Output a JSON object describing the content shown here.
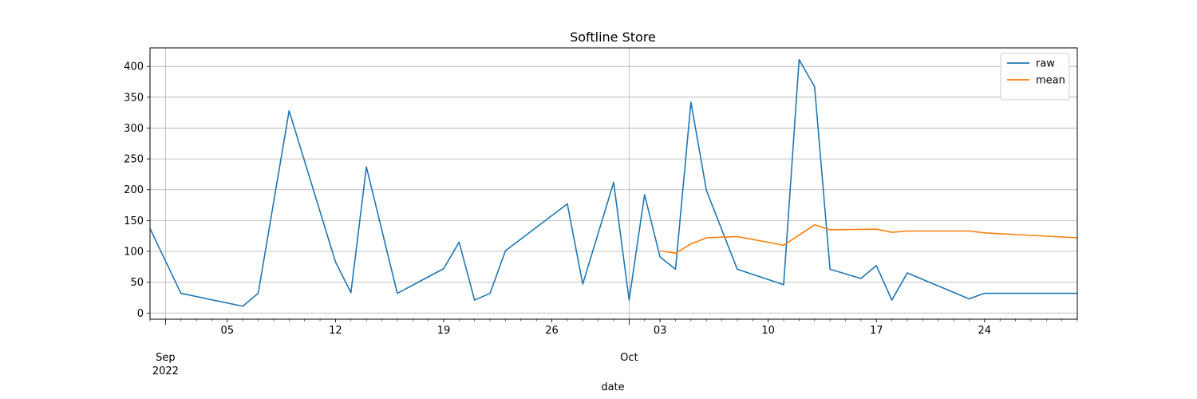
{
  "chart_data": {
    "type": "line",
    "title": "Softline Store",
    "xlabel": "date",
    "ylabel": "",
    "ylim": [
      -10,
      430
    ],
    "xlim": [
      "2022-08-31",
      "2022-10-30"
    ],
    "grid": true,
    "legend_position": "top-right",
    "y_ticks": [
      0,
      50,
      100,
      150,
      200,
      250,
      300,
      350,
      400
    ],
    "x_major_ticks": [
      {
        "date": "2022-09-05",
        "label": "05"
      },
      {
        "date": "2022-09-12",
        "label": "12"
      },
      {
        "date": "2022-09-19",
        "label": "19"
      },
      {
        "date": "2022-09-26",
        "label": "26"
      },
      {
        "date": "2022-10-03",
        "label": "03"
      },
      {
        "date": "2022-10-10",
        "label": "10"
      },
      {
        "date": "2022-10-17",
        "label": "17"
      },
      {
        "date": "2022-10-24",
        "label": "24"
      }
    ],
    "x_month_ticks": [
      {
        "date": "2022-09-01",
        "label": "Sep",
        "year_label": "2022"
      },
      {
        "date": "2022-10-01",
        "label": "Oct",
        "year_label": ""
      }
    ],
    "series": [
      {
        "name": "raw",
        "color": "#1f77b4",
        "points": [
          [
            "2022-08-31",
            137
          ],
          [
            "2022-09-02",
            32
          ],
          [
            "2022-09-06",
            11
          ],
          [
            "2022-09-07",
            32
          ],
          [
            "2022-09-09",
            328
          ],
          [
            "2022-09-12",
            83
          ],
          [
            "2022-09-13",
            33
          ],
          [
            "2022-09-14",
            237
          ],
          [
            "2022-09-16",
            32
          ],
          [
            "2022-09-19",
            72
          ],
          [
            "2022-09-20",
            115
          ],
          [
            "2022-09-21",
            21
          ],
          [
            "2022-09-22",
            32
          ],
          [
            "2022-09-23",
            101
          ],
          [
            "2022-09-27",
            177
          ],
          [
            "2022-09-28",
            47
          ],
          [
            "2022-09-30",
            212
          ],
          [
            "2022-10-01",
            21
          ],
          [
            "2022-10-02",
            192
          ],
          [
            "2022-10-03",
            91
          ],
          [
            "2022-10-04",
            71
          ],
          [
            "2022-10-05",
            342
          ],
          [
            "2022-10-06",
            199
          ],
          [
            "2022-10-08",
            71
          ],
          [
            "2022-10-11",
            46
          ],
          [
            "2022-10-12",
            411
          ],
          [
            "2022-10-13",
            367
          ],
          [
            "2022-10-14",
            71
          ],
          [
            "2022-10-16",
            56
          ],
          [
            "2022-10-17",
            77
          ],
          [
            "2022-10-18",
            21
          ],
          [
            "2022-10-19",
            65
          ],
          [
            "2022-10-23",
            23
          ],
          [
            "2022-10-24",
            32
          ],
          [
            "2022-10-30",
            32
          ]
        ]
      },
      {
        "name": "mean",
        "color": "#ff7f0e",
        "points": [
          [
            "2022-10-03",
            101
          ],
          [
            "2022-10-04",
            97
          ],
          [
            "2022-10-05",
            112
          ],
          [
            "2022-10-06",
            122
          ],
          [
            "2022-10-08",
            124
          ],
          [
            "2022-10-11",
            110
          ],
          [
            "2022-10-13",
            143
          ],
          [
            "2022-10-14",
            135
          ],
          [
            "2022-10-17",
            136
          ],
          [
            "2022-10-18",
            131
          ],
          [
            "2022-10-19",
            133
          ],
          [
            "2022-10-23",
            133
          ],
          [
            "2022-10-24",
            130
          ],
          [
            "2022-10-30",
            122
          ]
        ]
      }
    ]
  }
}
